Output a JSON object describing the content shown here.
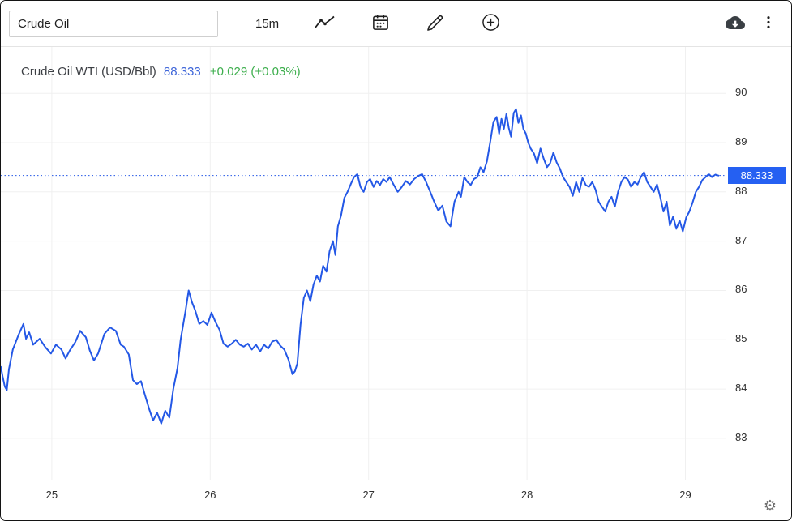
{
  "toolbar": {
    "search_value": "Crude Oil",
    "interval_label": "15m"
  },
  "header": {
    "title": "Crude Oil WTI (USD/Bbl)",
    "price": "88.333",
    "change": "+0.029 (+0.03%)"
  },
  "colors": {
    "line_blue": "#2458e6",
    "tag_background": "#2560f2",
    "header_price_blue": "#3f66d9",
    "change_green": "#3cae4c",
    "grid_gray": "#f0f0f0"
  },
  "chart_data": {
    "type": "line",
    "title": "Crude Oil WTI (USD/Bbl)",
    "xlabel": "",
    "ylabel": "USD/Bbl",
    "x_ticks": [
      25,
      26,
      27,
      28,
      29
    ],
    "y_ticks": [
      90,
      89,
      88,
      87,
      86,
      85,
      84,
      83
    ],
    "xlim": [
      24.678,
      29.233
    ],
    "ylim": [
      82.16,
      90.94
    ],
    "grid": true,
    "legend": false,
    "interval": "15m",
    "last_price": 88.333,
    "last_price_label": "88.333",
    "line_color": "#2458e6",
    "series": [
      {
        "name": "Crude Oil WTI",
        "points": [
          [
            24.678,
            84.45
          ],
          [
            24.69,
            84.25
          ],
          [
            24.703,
            84.05
          ],
          [
            24.716,
            83.98
          ],
          [
            24.729,
            84.4
          ],
          [
            24.754,
            84.8
          ],
          [
            24.79,
            85.1
          ],
          [
            24.821,
            85.32
          ],
          [
            24.837,
            85.02
          ],
          [
            24.857,
            85.15
          ],
          [
            24.882,
            84.9
          ],
          [
            24.923,
            85.02
          ],
          [
            24.959,
            84.85
          ],
          [
            24.995,
            84.72
          ],
          [
            25.026,
            84.9
          ],
          [
            25.061,
            84.8
          ],
          [
            25.087,
            84.62
          ],
          [
            25.113,
            84.78
          ],
          [
            25.148,
            84.95
          ],
          [
            25.179,
            85.18
          ],
          [
            25.215,
            85.05
          ],
          [
            25.24,
            84.78
          ],
          [
            25.266,
            84.58
          ],
          [
            25.292,
            84.72
          ],
          [
            25.332,
            85.12
          ],
          [
            25.368,
            85.25
          ],
          [
            25.404,
            85.18
          ],
          [
            25.435,
            84.9
          ],
          [
            25.455,
            84.86
          ],
          [
            25.486,
            84.7
          ],
          [
            25.512,
            84.18
          ],
          [
            25.537,
            84.1
          ],
          [
            25.563,
            84.16
          ],
          [
            25.588,
            83.88
          ],
          [
            25.614,
            83.6
          ],
          [
            25.639,
            83.36
          ],
          [
            25.665,
            83.52
          ],
          [
            25.691,
            83.3
          ],
          [
            25.716,
            83.56
          ],
          [
            25.742,
            83.42
          ],
          [
            25.767,
            84.0
          ],
          [
            25.793,
            84.42
          ],
          [
            25.813,
            85.0
          ],
          [
            25.844,
            85.58
          ],
          [
            25.864,
            86.0
          ],
          [
            25.885,
            85.76
          ],
          [
            25.905,
            85.6
          ],
          [
            25.931,
            85.32
          ],
          [
            25.957,
            85.38
          ],
          [
            25.982,
            85.3
          ],
          [
            26.008,
            85.55
          ],
          [
            26.033,
            85.36
          ],
          [
            26.059,
            85.2
          ],
          [
            26.084,
            84.92
          ],
          [
            26.11,
            84.86
          ],
          [
            26.136,
            84.92
          ],
          [
            26.161,
            85.0
          ],
          [
            26.187,
            84.9
          ],
          [
            26.212,
            84.86
          ],
          [
            26.238,
            84.92
          ],
          [
            26.263,
            84.8
          ],
          [
            26.289,
            84.9
          ],
          [
            26.315,
            84.76
          ],
          [
            26.34,
            84.9
          ],
          [
            26.366,
            84.82
          ],
          [
            26.391,
            84.96
          ],
          [
            26.417,
            85.0
          ],
          [
            26.442,
            84.88
          ],
          [
            26.468,
            84.8
          ],
          [
            26.494,
            84.6
          ],
          [
            26.519,
            84.3
          ],
          [
            26.535,
            84.36
          ],
          [
            26.55,
            84.52
          ],
          [
            26.57,
            85.3
          ],
          [
            26.591,
            85.85
          ],
          [
            26.611,
            86.0
          ],
          [
            26.632,
            85.78
          ],
          [
            26.652,
            86.12
          ],
          [
            26.673,
            86.3
          ],
          [
            26.693,
            86.18
          ],
          [
            26.713,
            86.5
          ],
          [
            26.734,
            86.38
          ],
          [
            26.754,
            86.8
          ],
          [
            26.775,
            87.0
          ],
          [
            26.79,
            86.72
          ],
          [
            26.806,
            87.3
          ],
          [
            26.826,
            87.52
          ],
          [
            26.847,
            87.88
          ],
          [
            26.867,
            88.0
          ],
          [
            26.888,
            88.16
          ],
          [
            26.908,
            88.3
          ],
          [
            26.929,
            88.36
          ],
          [
            26.949,
            88.1
          ],
          [
            26.969,
            88.0
          ],
          [
            26.99,
            88.2
          ],
          [
            27.01,
            88.26
          ],
          [
            27.031,
            88.1
          ],
          [
            27.051,
            88.22
          ],
          [
            27.072,
            88.14
          ],
          [
            27.092,
            88.26
          ],
          [
            27.113,
            88.2
          ],
          [
            27.133,
            88.3
          ],
          [
            27.159,
            88.14
          ],
          [
            27.184,
            88.0
          ],
          [
            27.21,
            88.1
          ],
          [
            27.235,
            88.22
          ],
          [
            27.261,
            88.15
          ],
          [
            27.287,
            88.26
          ],
          [
            27.312,
            88.32
          ],
          [
            27.338,
            88.36
          ],
          [
            27.363,
            88.2
          ],
          [
            27.389,
            88.0
          ],
          [
            27.414,
            87.8
          ],
          [
            27.44,
            87.62
          ],
          [
            27.466,
            87.72
          ],
          [
            27.491,
            87.4
          ],
          [
            27.517,
            87.3
          ],
          [
            27.542,
            87.8
          ],
          [
            27.568,
            88.0
          ],
          [
            27.583,
            87.9
          ],
          [
            27.604,
            88.3
          ],
          [
            27.624,
            88.2
          ],
          [
            27.645,
            88.14
          ],
          [
            27.665,
            88.26
          ],
          [
            27.686,
            88.3
          ],
          [
            27.706,
            88.5
          ],
          [
            27.726,
            88.4
          ],
          [
            27.747,
            88.62
          ],
          [
            27.767,
            89.0
          ],
          [
            27.788,
            89.42
          ],
          [
            27.808,
            89.52
          ],
          [
            27.824,
            89.18
          ],
          [
            27.839,
            89.48
          ],
          [
            27.854,
            89.28
          ],
          [
            27.87,
            89.58
          ],
          [
            27.885,
            89.3
          ],
          [
            27.9,
            89.12
          ],
          [
            27.916,
            89.6
          ],
          [
            27.931,
            89.68
          ],
          [
            27.946,
            89.4
          ],
          [
            27.962,
            89.55
          ],
          [
            27.977,
            89.28
          ],
          [
            27.993,
            89.18
          ],
          [
            28.008,
            89.0
          ],
          [
            28.023,
            88.88
          ],
          [
            28.044,
            88.78
          ],
          [
            28.064,
            88.58
          ],
          [
            28.085,
            88.88
          ],
          [
            28.105,
            88.68
          ],
          [
            28.126,
            88.5
          ],
          [
            28.146,
            88.58
          ],
          [
            28.167,
            88.8
          ],
          [
            28.187,
            88.6
          ],
          [
            28.207,
            88.48
          ],
          [
            28.228,
            88.3
          ],
          [
            28.248,
            88.2
          ],
          [
            28.269,
            88.1
          ],
          [
            28.289,
            87.92
          ],
          [
            28.31,
            88.2
          ],
          [
            28.33,
            88.0
          ],
          [
            28.35,
            88.28
          ],
          [
            28.371,
            88.14
          ],
          [
            28.391,
            88.1
          ],
          [
            28.412,
            88.2
          ],
          [
            28.432,
            88.05
          ],
          [
            28.453,
            87.8
          ],
          [
            28.473,
            87.7
          ],
          [
            28.494,
            87.6
          ],
          [
            28.514,
            87.8
          ],
          [
            28.534,
            87.9
          ],
          [
            28.555,
            87.7
          ],
          [
            28.575,
            88.0
          ],
          [
            28.596,
            88.2
          ],
          [
            28.616,
            88.3
          ],
          [
            28.637,
            88.25
          ],
          [
            28.657,
            88.1
          ],
          [
            28.678,
            88.2
          ],
          [
            28.698,
            88.15
          ],
          [
            28.718,
            88.3
          ],
          [
            28.739,
            88.4
          ],
          [
            28.759,
            88.2
          ],
          [
            28.78,
            88.1
          ],
          [
            28.8,
            88.0
          ],
          [
            28.821,
            88.15
          ],
          [
            28.841,
            87.9
          ],
          [
            28.862,
            87.6
          ],
          [
            28.882,
            87.8
          ],
          [
            28.902,
            87.32
          ],
          [
            28.923,
            87.5
          ],
          [
            28.943,
            87.25
          ],
          [
            28.964,
            87.42
          ],
          [
            28.984,
            87.2
          ],
          [
            29.005,
            87.48
          ],
          [
            29.025,
            87.6
          ],
          [
            29.045,
            87.78
          ],
          [
            29.066,
            88.0
          ],
          [
            29.086,
            88.1
          ],
          [
            29.107,
            88.24
          ],
          [
            29.127,
            88.3
          ],
          [
            29.148,
            88.36
          ],
          [
            29.168,
            88.3
          ],
          [
            29.189,
            88.35
          ],
          [
            29.209,
            88.33
          ]
        ]
      }
    ]
  }
}
